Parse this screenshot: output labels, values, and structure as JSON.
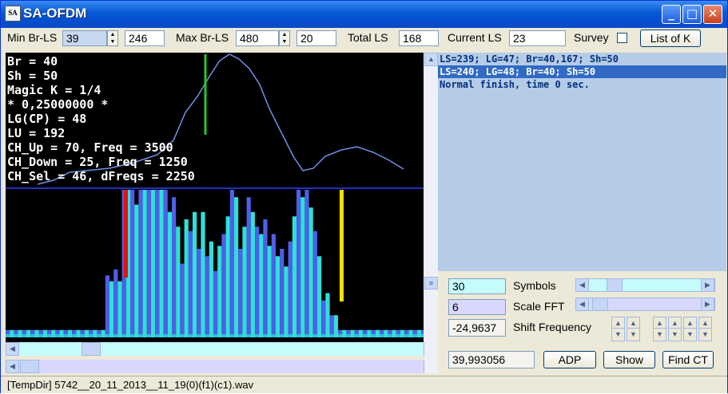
{
  "window": {
    "title": "SA-OFDM",
    "app_icon_text": "SA"
  },
  "toolbar": {
    "min_br_ls_label": "Min Br-LS",
    "min_br_ls_value": "39",
    "min_br_ls_extra": "246",
    "max_br_ls_label": "Max Br-LS",
    "max_br_ls_value": "480",
    "max_br_ls_extra": "20",
    "total_ls_label": "Total LS",
    "total_ls_value": "168",
    "current_ls_label": "Current LS",
    "current_ls_value": "23",
    "survey_label": "Survey",
    "survey_checked": false,
    "list_of_k_label": "List of K"
  },
  "info": {
    "lines": [
      "Br = 40",
      "Sh = 50",
      "Magic K = 1/4",
      "* 0,25000000 *",
      "LG(CP) = 48",
      "LU = 192",
      "CH_Up = 70, Freq = 3500",
      "CH_Down = 25, Freq = 1250",
      "CH_Sel = 46, dFreqs = 2250"
    ]
  },
  "log": {
    "lines": [
      {
        "text": "LS=239; LG=47; Br=40,167; Sh=50",
        "highlighted": false
      },
      {
        "text": "LS=240; LG=48; Br=40; Sh=50",
        "highlighted": true
      },
      {
        "text": "Normal finish, time 0 sec.",
        "highlighted": false
      }
    ]
  },
  "controls": {
    "symbols_value": "30",
    "symbols_label": "Symbols",
    "scale_fft_value": "6",
    "scale_fft_label": "Scale FFT",
    "shift_freq_value": "-24,9637",
    "shift_freq_label": "Shift Frequency",
    "freq_readout": "39,993056",
    "adp_label": "ADP",
    "show_label": "Show",
    "find_ct_label": "Find CT"
  },
  "status": {
    "file": "[TempDir] 5742__20_11_2013__11_19(0)(f1)(c1).wav"
  },
  "colors": {
    "bar_a": "#4f5fe8",
    "bar_b": "#2ee0d8",
    "curve": "#7090e8",
    "marker_green": "#22cc22",
    "marker_red": "#e81010",
    "marker_yellow": "#f0e000"
  }
}
